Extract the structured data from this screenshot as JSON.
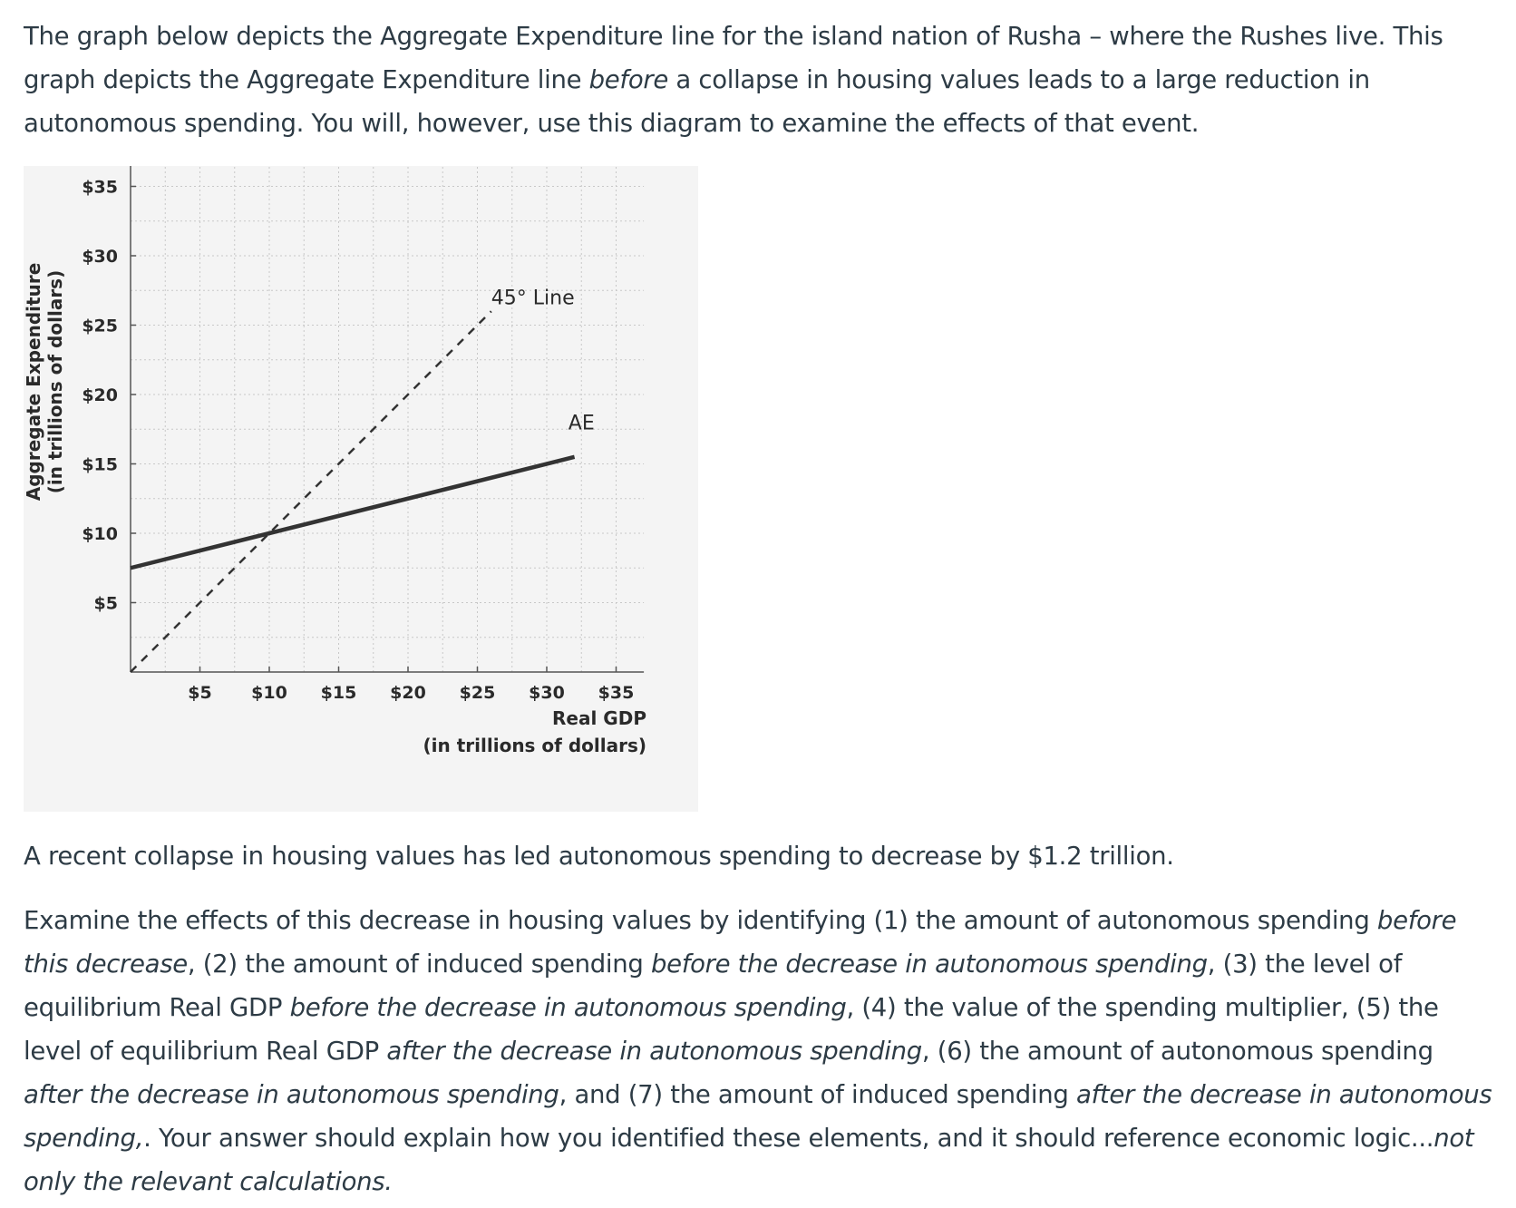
{
  "intro": {
    "s1": "The graph below depicts the Aggregate Expenditure line for the island nation of Rusha – where the Rushes live. This graph depicts the Aggregate Expenditure line ",
    "s1_em": "before",
    "s2": " a collapse in housing values leads to a large reduction in autonomous spending. You will, however, use this diagram to examine the effects of that event."
  },
  "chart_data": {
    "type": "line",
    "title": "",
    "xlabel": "Real GDP",
    "xlabel_units": "(in trillions of dollars)",
    "ylabel": "Aggregate Expenditure",
    "ylabel_units": "(in trillions of dollars)",
    "xlim": [
      0,
      37
    ],
    "ylim": [
      0,
      37
    ],
    "x_ticks": [
      5,
      10,
      15,
      20,
      25,
      30,
      35
    ],
    "y_ticks": [
      5,
      10,
      15,
      20,
      25,
      30,
      35
    ],
    "x_tick_labels": [
      "$5",
      "$10",
      "$15",
      "$20",
      "$25",
      "$30",
      "$35"
    ],
    "y_tick_labels": [
      "$5",
      "$10",
      "$15",
      "$20",
      "$25",
      "$30",
      "$35"
    ],
    "grid": true,
    "series": [
      {
        "name": "45° Line",
        "style": "dashed",
        "x": [
          0,
          26
        ],
        "y": [
          0,
          26
        ]
      },
      {
        "name": "AE",
        "style": "solid",
        "x": [
          0,
          32
        ],
        "y": [
          7.5,
          15.5
        ]
      }
    ],
    "annotations": [
      {
        "text": "45° Line",
        "x": 29,
        "y": 26.5
      },
      {
        "text": "AE",
        "x": 32.5,
        "y": 17.5
      }
    ],
    "colors": {
      "line": "#333333",
      "grid": "#c8c8c8",
      "background": "#f4f4f4"
    }
  },
  "body": {
    "p2": "A recent collapse in housing values has led autonomous spending to decrease by $1.2 trillion.",
    "p3": [
      {
        "t": "Examine the effects of this decrease in housing values by identifying (1) the amount of autonomous spending "
      },
      {
        "t": "before this decrease",
        "em": true
      },
      {
        "t": ", (2) the amount of induced spending "
      },
      {
        "t": "before the decrease in autonomous spending",
        "em": true
      },
      {
        "t": ", (3) the level of equilibrium Real GDP "
      },
      {
        "t": "before the decrease in autonomous spending",
        "em": true
      },
      {
        "t": ", (4) the value of the spending multiplier, (5) the level of equilibrium Real GDP "
      },
      {
        "t": "after the decrease in autonomous spending",
        "em": true
      },
      {
        "t": ", (6) the amount of autonomous spending "
      },
      {
        "t": "after the decrease in autonomous spending",
        "em": true
      },
      {
        "t": ", and (7) the amount of induced spending "
      },
      {
        "t": "after the decrease in autonomous spending,",
        "em": true
      },
      {
        "t": ". Your answer should explain how you identified these elements, and it should reference economic logic..."
      },
      {
        "t": "not only the relevant calculations.",
        "em": true
      }
    ]
  }
}
